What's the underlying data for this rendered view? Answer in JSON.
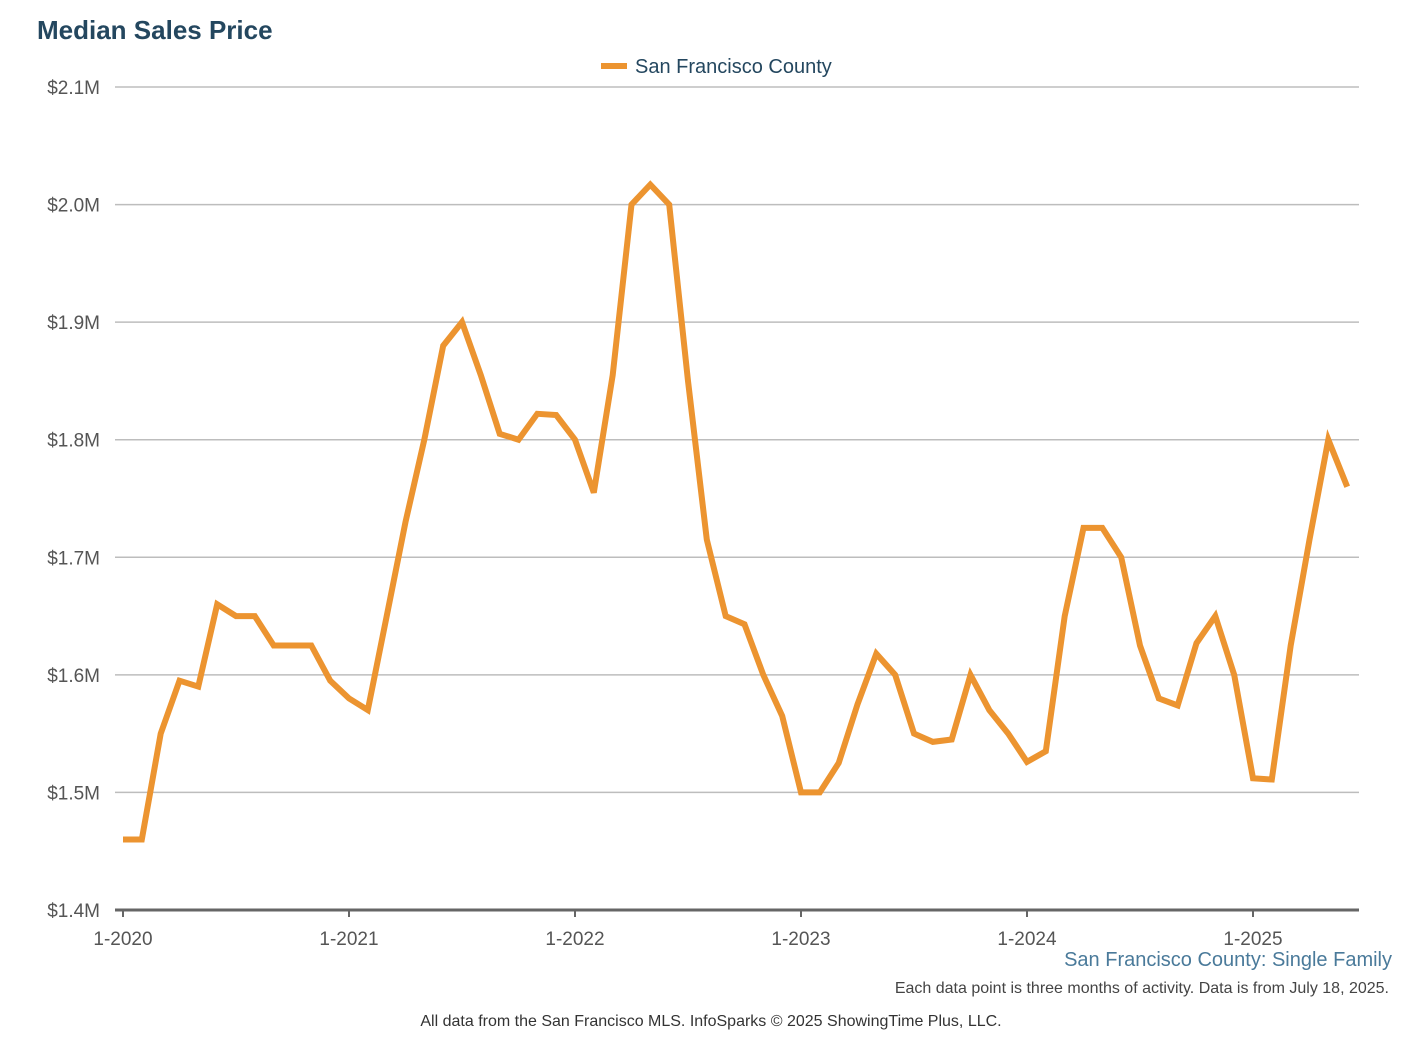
{
  "colors": {
    "title": "#24475f",
    "series": "#ec9430",
    "grid": "#bdbdbd",
    "axis": "#666666",
    "tick_text": "#555555",
    "legend_text": "#24475f",
    "subtitle": "#4a7a9a"
  },
  "chart_data": {
    "type": "line",
    "title": "Median Sales Price",
    "subtitle": "San Francisco County: Single Family",
    "note": "Each data point is three months of activity. Data is from July 18, 2025.",
    "footer": "All data from the San Francisco MLS. InfoSparks © 2025 ShowingTime Plus, LLC.",
    "legend": {
      "position": "top-center",
      "entries": [
        "San Francisco County"
      ]
    },
    "xlabel": "",
    "ylabel": "",
    "x_ticks": [
      "1-2020",
      "1-2021",
      "1-2022",
      "1-2023",
      "1-2024",
      "1-2025"
    ],
    "y_ticks": [
      "$1.4M",
      "$1.5M",
      "$1.6M",
      "$1.7M",
      "$1.8M",
      "$1.9M",
      "$2.0M",
      "$2.1M"
    ],
    "ylim": [
      1.4,
      2.1
    ],
    "y_unit": "millions USD",
    "x_start": "2020-01",
    "x_end": "2025-06",
    "grid": true,
    "series": [
      {
        "name": "San Francisco County",
        "x": [
          "2020-01",
          "2020-02",
          "2020-03",
          "2020-04",
          "2020-05",
          "2020-06",
          "2020-07",
          "2020-08",
          "2020-09",
          "2020-10",
          "2020-11",
          "2020-12",
          "2021-01",
          "2021-02",
          "2021-03",
          "2021-04",
          "2021-05",
          "2021-06",
          "2021-07",
          "2021-08",
          "2021-09",
          "2021-10",
          "2021-11",
          "2021-12",
          "2022-01",
          "2022-02",
          "2022-03",
          "2022-04",
          "2022-05",
          "2022-06",
          "2022-07",
          "2022-08",
          "2022-09",
          "2022-10",
          "2022-11",
          "2022-12",
          "2023-01",
          "2023-02",
          "2023-03",
          "2023-04",
          "2023-05",
          "2023-06",
          "2023-07",
          "2023-08",
          "2023-09",
          "2023-10",
          "2023-11",
          "2023-12",
          "2024-01",
          "2024-02",
          "2024-03",
          "2024-04",
          "2024-05",
          "2024-06",
          "2024-07",
          "2024-08",
          "2024-09",
          "2024-10",
          "2024-11",
          "2024-12",
          "2025-01",
          "2025-02",
          "2025-03",
          "2025-04",
          "2025-05",
          "2025-06"
        ],
        "values": [
          1.46,
          1.46,
          1.55,
          1.595,
          1.59,
          1.66,
          1.65,
          1.65,
          1.625,
          1.625,
          1.625,
          1.595,
          1.58,
          1.57,
          1.65,
          1.73,
          1.8,
          1.88,
          1.9,
          1.855,
          1.805,
          1.8,
          1.822,
          1.821,
          1.8,
          1.755,
          1.855,
          2.0,
          2.017,
          2.0,
          1.85,
          1.715,
          1.65,
          1.643,
          1.6,
          1.565,
          1.5,
          1.5,
          1.525,
          1.575,
          1.618,
          1.6,
          1.55,
          1.543,
          1.545,
          1.6,
          1.57,
          1.55,
          1.526,
          1.535,
          1.65,
          1.725,
          1.725,
          1.7,
          1.625,
          1.58,
          1.574,
          1.627,
          1.65,
          1.6,
          1.512,
          1.511,
          1.625,
          1.715,
          1.8,
          1.76
        ]
      }
    ]
  }
}
